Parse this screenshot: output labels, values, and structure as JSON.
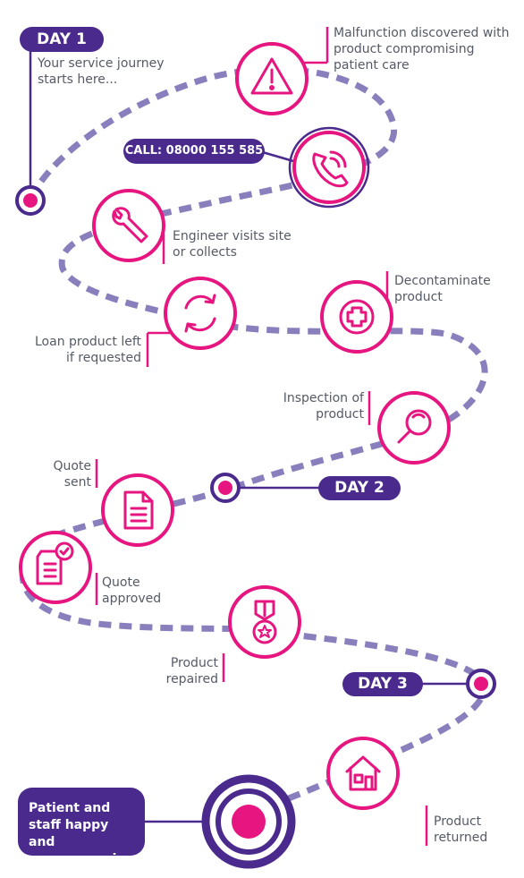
{
  "colors": {
    "accent": "#e6157f",
    "path": "#8a7fbd",
    "brand": "#4a2a8c",
    "text": "#555a66"
  },
  "days": {
    "day1": "DAY 1",
    "day2": "DAY 2",
    "day3": "DAY 3"
  },
  "call": "CALL: 08000 155 585",
  "steps": {
    "start": "Your service journey\nstarts here...",
    "malfunction": "Malfunction discovered with\nproduct compromising\npatient care",
    "engineer": "Engineer visits site\nor collects",
    "decontaminate": "Decontaminate\nproduct",
    "loan": "Loan product left\nif requested",
    "inspection": "Inspection of\nproduct",
    "quote_sent": "Quote\nsent",
    "quote_approved": "Quote\napproved",
    "repaired": "Product\nrepaired",
    "returned": "Product\nreturned"
  },
  "end": "Patient and\nstaff happy and\nuncompromised",
  "icons": {
    "warning": "warning-icon",
    "phone": "phone-icon",
    "wrench": "wrench-icon",
    "refresh": "refresh-icon",
    "medical": "medical-cross-icon",
    "magnifier": "magnifier-icon",
    "document": "document-icon",
    "approved": "approved-document-icon",
    "medal": "medal-icon",
    "house": "house-icon"
  }
}
